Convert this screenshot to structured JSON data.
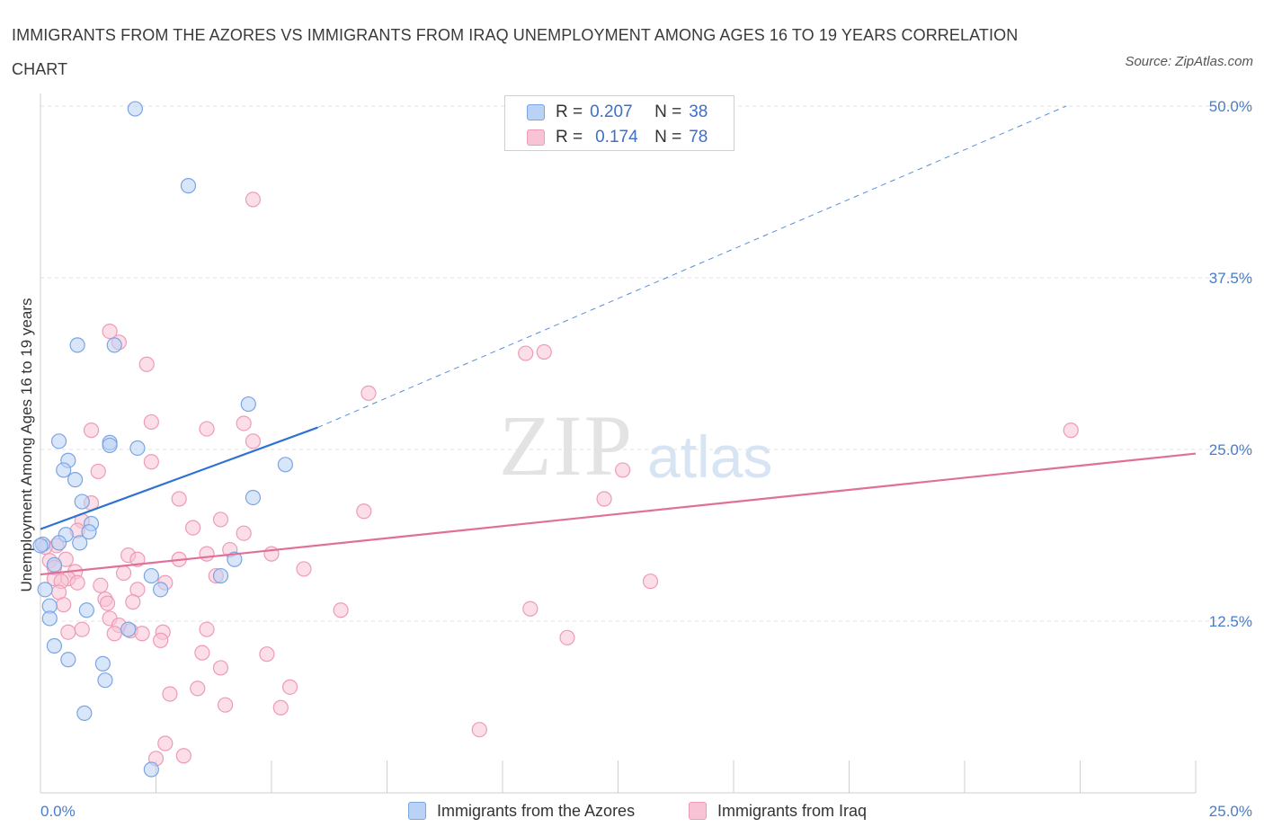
{
  "title": "IMMIGRANTS FROM THE AZORES VS IMMIGRANTS FROM IRAQ UNEMPLOYMENT AMONG AGES 16 TO 19 YEARS CORRELATION CHART",
  "source": "Source: ZipAtlas.com",
  "watermark": {
    "zip": "ZIP",
    "atlas": "atlas"
  },
  "legend": {
    "azores": {
      "r_label": "R =",
      "r_value": "0.207",
      "n_label": "N =",
      "n_value": "38"
    },
    "iraq": {
      "r_label": "R =",
      "r_value": "0.174",
      "n_label": "N =",
      "n_value": "78"
    }
  },
  "bottom_legend": {
    "azores": "Immigrants from the Azores",
    "iraq": "Immigrants from Iraq"
  },
  "colors": {
    "azores_fill": "#b9d2f5",
    "azores_stroke": "#7aa5e3",
    "azores_line": "#2f72d3",
    "iraq_fill": "#f8c3d4",
    "iraq_stroke": "#ee9bb6",
    "iraq_line": "#e0709a",
    "grid": "#e2e2e2",
    "tick": "#4a7cc9"
  },
  "chart_data": {
    "type": "scatter",
    "title": "IMMIGRANTS FROM THE AZORES VS IMMIGRANTS FROM IRAQ UNEMPLOYMENT AMONG AGES 16 TO 19 YEARS CORRELATION CHART",
    "xlabel": "",
    "ylabel": "Unemployment Among Ages 16 to 19 years",
    "xlim": [
      0,
      25
    ],
    "ylim": [
      0,
      50
    ],
    "x_tick_labels": [
      "0.0%",
      "25.0%"
    ],
    "y_ticks": [
      12.5,
      25,
      37.5,
      50
    ],
    "y_tick_labels": [
      "12.5%",
      "25.0%",
      "37.5%",
      "50.0%"
    ],
    "grid": true,
    "series": [
      {
        "name": "Immigrants from the Azores",
        "R": 0.207,
        "N": 38,
        "trend": {
          "x0": 0,
          "y0": 19.2,
          "x1": 6.0,
          "y1": 26.6,
          "dashed_to_x": 22.2,
          "dashed_to_y": 50.0
        },
        "points": [
          [
            2.05,
            49.8
          ],
          [
            3.2,
            44.2
          ],
          [
            0.8,
            32.6
          ],
          [
            1.6,
            32.6
          ],
          [
            4.5,
            28.3
          ],
          [
            0.4,
            25.6
          ],
          [
            1.5,
            25.5
          ],
          [
            1.5,
            25.3
          ],
          [
            2.1,
            25.1
          ],
          [
            0.6,
            24.2
          ],
          [
            5.3,
            23.9
          ],
          [
            0.5,
            23.5
          ],
          [
            0.75,
            22.8
          ],
          [
            4.6,
            21.5
          ],
          [
            0.9,
            21.2
          ],
          [
            1.1,
            19.6
          ],
          [
            0.55,
            18.8
          ],
          [
            1.05,
            19.0
          ],
          [
            0.4,
            18.2
          ],
          [
            0.85,
            18.2
          ],
          [
            0.05,
            18.1
          ],
          [
            0.3,
            16.6
          ],
          [
            4.2,
            17.0
          ],
          [
            2.4,
            15.8
          ],
          [
            3.9,
            15.8
          ],
          [
            2.6,
            14.8
          ],
          [
            0.1,
            14.8
          ],
          [
            0.2,
            13.6
          ],
          [
            1.0,
            13.3
          ],
          [
            0.2,
            12.7
          ],
          [
            1.9,
            11.9
          ],
          [
            0.3,
            10.7
          ],
          [
            0.6,
            9.7
          ],
          [
            1.35,
            9.4
          ],
          [
            1.4,
            8.2
          ],
          [
            0.95,
            5.8
          ],
          [
            2.4,
            1.7
          ],
          [
            0.0,
            18.0
          ]
        ]
      },
      {
        "name": "Immigrants from Iraq",
        "R": 0.174,
        "N": 78,
        "trend": {
          "x0": 0,
          "y0": 15.9,
          "x1": 25,
          "y1": 24.7
        },
        "points": [
          [
            4.6,
            43.2
          ],
          [
            1.5,
            33.6
          ],
          [
            1.7,
            32.8
          ],
          [
            10.5,
            32.0
          ],
          [
            10.9,
            32.1
          ],
          [
            2.3,
            31.2
          ],
          [
            7.1,
            29.1
          ],
          [
            22.3,
            26.4
          ],
          [
            1.1,
            26.4
          ],
          [
            3.6,
            26.5
          ],
          [
            2.4,
            27.0
          ],
          [
            4.4,
            26.9
          ],
          [
            4.6,
            25.6
          ],
          [
            2.4,
            24.1
          ],
          [
            12.6,
            23.5
          ],
          [
            1.25,
            23.4
          ],
          [
            12.2,
            21.4
          ],
          [
            3.0,
            21.4
          ],
          [
            1.1,
            21.1
          ],
          [
            7.0,
            20.5
          ],
          [
            3.9,
            19.9
          ],
          [
            0.9,
            19.8
          ],
          [
            3.3,
            19.3
          ],
          [
            0.8,
            19.1
          ],
          [
            4.4,
            18.9
          ],
          [
            0.35,
            18.0
          ],
          [
            0.1,
            17.9
          ],
          [
            4.1,
            17.7
          ],
          [
            3.6,
            17.4
          ],
          [
            5.0,
            17.4
          ],
          [
            1.9,
            17.3
          ],
          [
            3.0,
            17.0
          ],
          [
            2.1,
            17.0
          ],
          [
            0.55,
            17.0
          ],
          [
            0.2,
            16.9
          ],
          [
            0.3,
            16.4
          ],
          [
            5.7,
            16.3
          ],
          [
            0.75,
            16.1
          ],
          [
            1.8,
            16.0
          ],
          [
            3.8,
            15.8
          ],
          [
            0.3,
            15.6
          ],
          [
            0.6,
            15.6
          ],
          [
            0.45,
            15.4
          ],
          [
            2.7,
            15.3
          ],
          [
            0.8,
            15.3
          ],
          [
            1.3,
            15.1
          ],
          [
            13.2,
            15.4
          ],
          [
            2.1,
            14.8
          ],
          [
            0.4,
            14.6
          ],
          [
            1.4,
            14.1
          ],
          [
            2.0,
            13.9
          ],
          [
            1.45,
            13.8
          ],
          [
            0.5,
            13.7
          ],
          [
            6.5,
            13.3
          ],
          [
            10.6,
            13.4
          ],
          [
            1.5,
            12.7
          ],
          [
            1.7,
            12.2
          ],
          [
            0.9,
            11.9
          ],
          [
            1.95,
            11.8
          ],
          [
            2.65,
            11.7
          ],
          [
            1.6,
            11.6
          ],
          [
            2.2,
            11.6
          ],
          [
            0.6,
            11.7
          ],
          [
            3.6,
            11.9
          ],
          [
            2.6,
            11.1
          ],
          [
            11.4,
            11.3
          ],
          [
            3.5,
            10.2
          ],
          [
            4.9,
            10.1
          ],
          [
            3.9,
            9.1
          ],
          [
            5.4,
            7.7
          ],
          [
            3.4,
            7.6
          ],
          [
            2.8,
            7.2
          ],
          [
            4.0,
            6.4
          ],
          [
            5.2,
            6.2
          ],
          [
            9.5,
            4.6
          ],
          [
            2.7,
            3.6
          ],
          [
            3.1,
            2.7
          ],
          [
            2.5,
            2.5
          ]
        ]
      }
    ]
  }
}
